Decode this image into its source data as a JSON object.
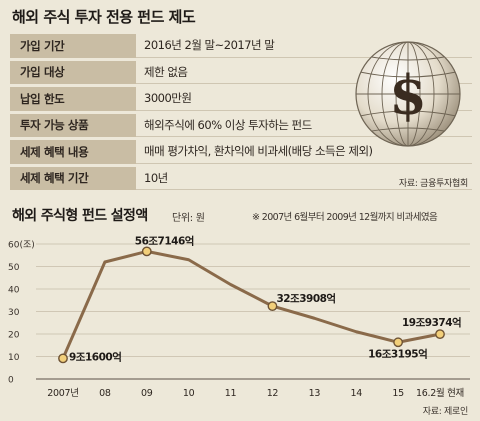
{
  "top_title": "해외 주식 투자 전용 펀드 제도",
  "info_rows": [
    {
      "label": "가입 기간",
      "value": "2016년 2월 말~2017년 말"
    },
    {
      "label": "가입 대상",
      "value": "제한 없음"
    },
    {
      "label": "납입 한도",
      "value": "3000만원"
    },
    {
      "label": "투자 가능 상품",
      "value": "해외주식에 60% 이상 투자하는 펀드"
    },
    {
      "label": "세제 혜택 내용",
      "value": "매매 평가차익, 환차익에 비과세(배당 소득은 제외)"
    },
    {
      "label": "세제 혜택 기간",
      "value": "10년"
    }
  ],
  "globe_symbol": "$",
  "source_top": "자료: 금융투자협회",
  "chart_title": "해외 주식형 펀드 설정액",
  "unit_label": "단위: 원",
  "note": "※ 2007년 6월부터 2009년 12월까지 비과세였음",
  "source_bottom": "자료: 제로인",
  "colors": {
    "background": "#ede8d9",
    "label_cell": "#c9bda4",
    "line": "#8a6a4a",
    "marker": "#f2cf7a"
  },
  "chart_data": {
    "type": "line",
    "categories": [
      "2007년",
      "08",
      "09",
      "10",
      "11",
      "12",
      "13",
      "14",
      "15",
      "16.2월 현재"
    ],
    "series": [
      {
        "values": [
          9.16,
          52,
          56.7146,
          53,
          42,
          32.3908,
          27,
          21,
          16.3195,
          19.9374
        ]
      }
    ],
    "ylim": [
      0,
      60
    ],
    "yticks": [
      0,
      10,
      20,
      30,
      40,
      50,
      60
    ],
    "ytick_labels": [
      "0",
      "10",
      "20",
      "30",
      "40",
      "50",
      "60(조)"
    ],
    "markers": [
      0,
      2,
      5,
      8,
      9
    ],
    "data_labels": [
      {
        "index": 0,
        "text": "9조1600억"
      },
      {
        "index": 2,
        "text": "56조7146억"
      },
      {
        "index": 5,
        "text": "32조3908억"
      },
      {
        "index": 8,
        "text": "16조3195억"
      },
      {
        "index": 9,
        "text": "19조9374억"
      }
    ],
    "grid": true
  }
}
